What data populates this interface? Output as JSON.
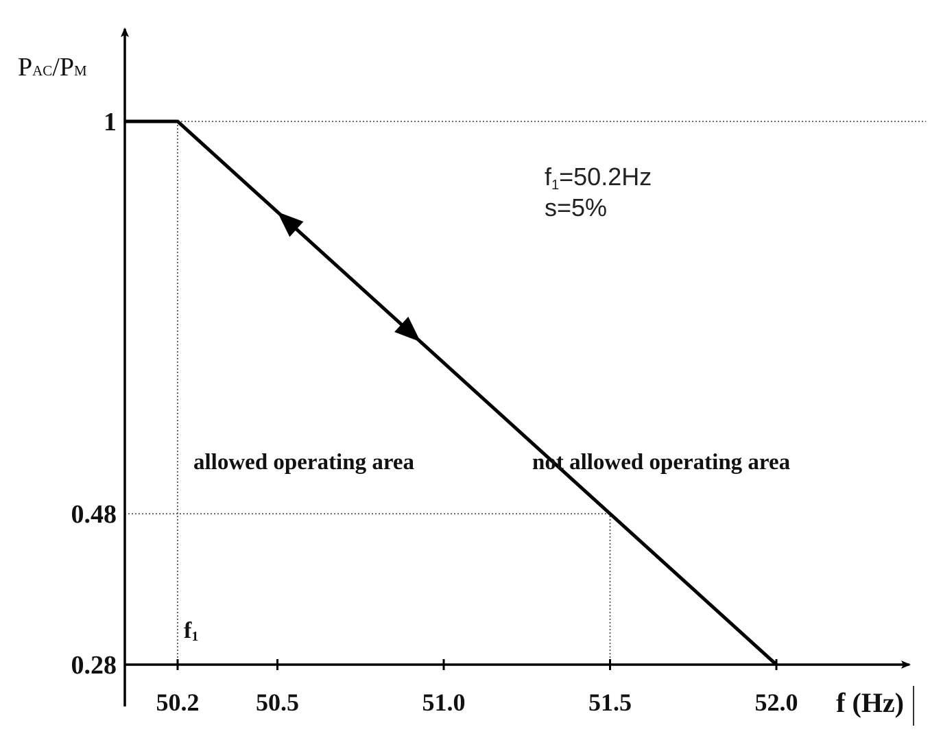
{
  "chart_data": {
    "type": "line",
    "title": "",
    "ylabel": {
      "main1": "P",
      "sub1": "AC",
      "slash": "/",
      "main2": "P",
      "sub2": "M"
    },
    "xlabel": "f (Hz)",
    "x_ticks": [
      50.2,
      50.5,
      51.0,
      51.5,
      52.0
    ],
    "x_tick_labels": [
      "50.2",
      "50.5",
      "51.0",
      "51.5",
      "52.0"
    ],
    "y_ticks": [
      0.28,
      0.48,
      1
    ],
    "y_tick_labels": [
      "0.28",
      "0.48",
      "1"
    ],
    "xlim": [
      50.0,
      52.8
    ],
    "ylim": [
      0.28,
      1.0
    ],
    "series": [
      {
        "x": [
          50.0,
          50.2,
          51.5,
          52.0
        ],
        "y": [
          1.0,
          1.0,
          0.48,
          0.28
        ]
      }
    ],
    "reference_lines": [
      {
        "kind": "horizontal",
        "y": 1.0,
        "x_from": 50.2,
        "x_to": 52.45
      },
      {
        "kind": "vertical",
        "x": 50.2,
        "y_from": 0.28,
        "y_to": 1.0
      },
      {
        "kind": "horizontal",
        "y": 0.48,
        "x_from": 50.0,
        "x_to": 51.5
      },
      {
        "kind": "vertical",
        "x": 51.5,
        "y_from": 0.28,
        "y_to": 0.48
      }
    ],
    "direction_arrows": [
      {
        "at_x": 50.53,
        "direction": "up"
      },
      {
        "at_x": 50.9,
        "direction": "down"
      }
    ],
    "annotations": {
      "params_line1": {
        "main": "f",
        "sub": "1",
        "rest": "=50.2Hz"
      },
      "params_line2": "s=5%",
      "f1_marker": {
        "main": "f",
        "sub": "1"
      },
      "allowed": "allowed operating area",
      "not_allowed": "not allowed operating area"
    }
  }
}
